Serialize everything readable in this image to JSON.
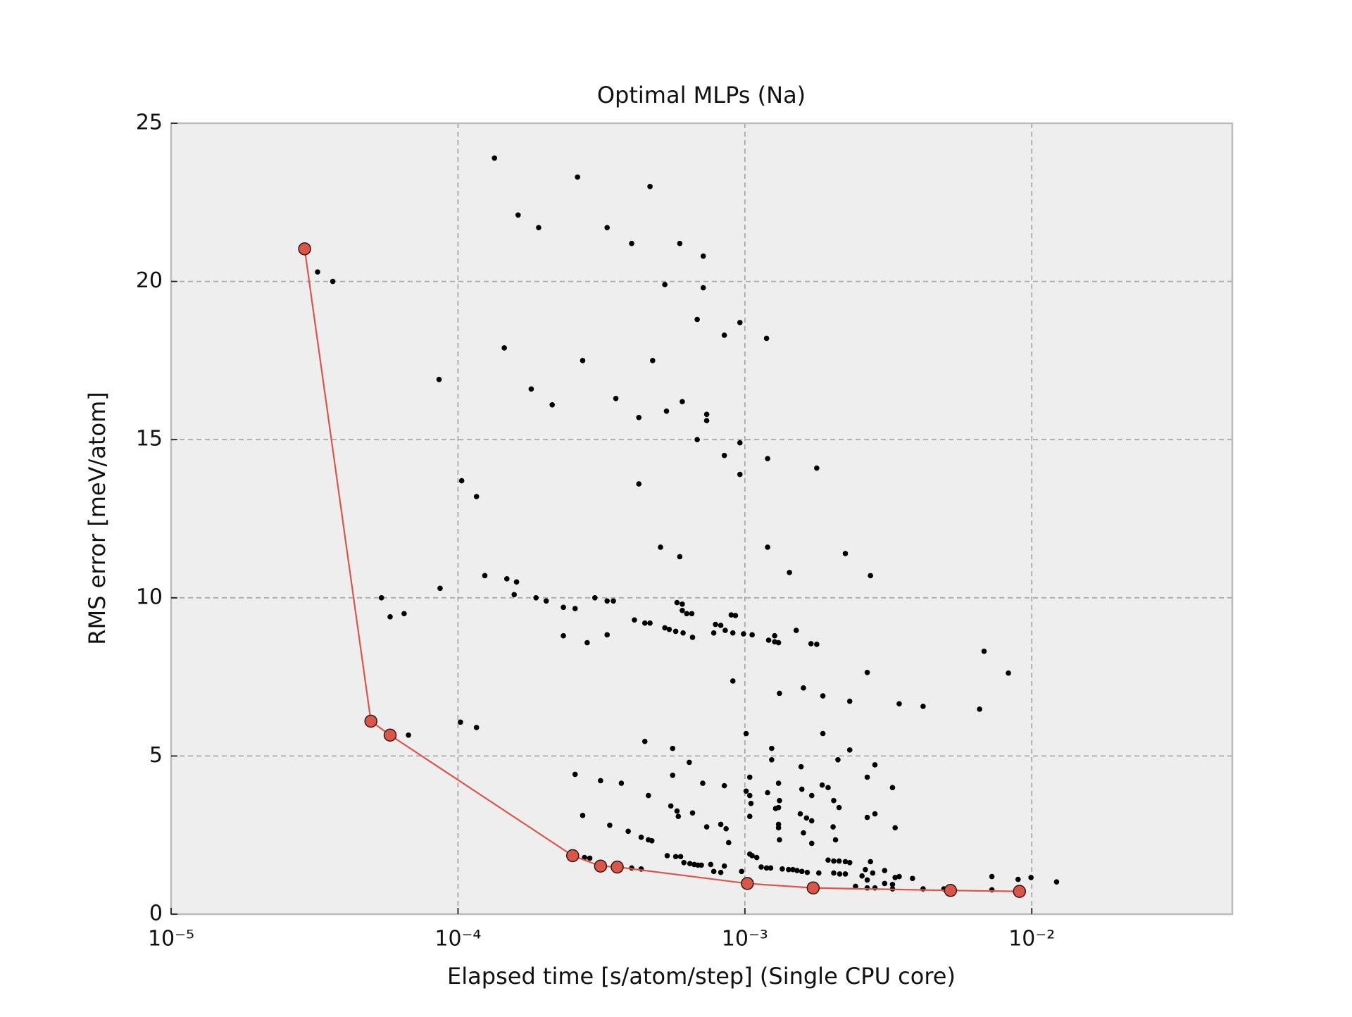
{
  "chart_data": {
    "type": "scatter",
    "title": "Optimal MLPs (Na)",
    "xlabel": "Elapsed time [s/atom/step] (Single CPU core)",
    "ylabel": "RMS error [meV/atom]",
    "xscale": "log",
    "xlim": [
      1e-05,
      0.05
    ],
    "ylim": [
      0,
      25
    ],
    "xticks": [
      {
        "value": 1e-05,
        "label": "10⁻⁵"
      },
      {
        "value": 0.0001,
        "label": "10⁻⁴"
      },
      {
        "value": 0.001,
        "label": "10⁻³"
      },
      {
        "value": 0.01,
        "label": "10⁻²"
      }
    ],
    "yticks": [
      0,
      5,
      10,
      15,
      20,
      25
    ],
    "grid": true,
    "series": [
      {
        "type": "scatter",
        "color": "#000000",
        "x": [
          0.000134,
          0.000261,
          0.000467,
          0.000162,
          0.000191,
          0.000331,
          0.000403,
          0.000593,
          0.000716,
          3.24e-05,
          3.66e-05,
          0.000526,
          0.000716,
          0.000682,
          0.000961,
          0.000848,
          0.00119,
          0.000145,
          0.000272,
          0.000477,
          8.59e-05,
          0.00018,
          0.000355,
          0.000605,
          0.000213,
          0.000533,
          0.000736,
          0.000427,
          0.000736,
          0.000682,
          0.000961,
          0.000848,
          0.0012,
          0.00178,
          0.000961,
          0.000103,
          0.000427,
          0.000116,
          0.000508,
          0.0012,
          0.000593,
          0.00224,
          0.00143,
          0.000124,
          0.00274,
          0.000148,
          0.00016,
          8.66e-05,
          0.000157,
          5.41e-05,
          0.000187,
          0.000203,
          0.0003,
          0.000331,
          0.000348,
          0.00058,
          0.000605,
          0.000233,
          0.000256,
          0.000605,
          0.000627,
          0.000653,
          0.000896,
          0.000927,
          6.49e-05,
          5.8e-05,
          0.000412,
          0.000448,
          0.000467,
          0.00079,
          0.000824,
          0.000526,
          0.000545,
          0.00151,
          0.000574,
          0.000609,
          0.000779,
          0.000854,
          0.000908,
          0.000989,
          0.00106,
          0.000331,
          0.000233,
          0.00127,
          0.000657,
          0.00121,
          0.00127,
          0.00131,
          0.000282,
          0.0017,
          0.00178,
          0.00682,
          0.00829,
          0.00267,
          0.000908,
          0.0016,
          0.00132,
          0.00187,
          0.00232,
          0.00345,
          0.00418,
          0.00658,
          0.000102,
          0.000116,
          6.72e-05,
          0.00187,
          0.00101,
          0.000448,
          0.00056,
          0.00124,
          0.00232,
          0.00124,
          0.00211,
          0.00064,
          0.00284,
          0.00157,
          0.000256,
          0.00056,
          0.00267,
          0.00104,
          0.000314,
          0.000371,
          0.00186,
          0.000713,
          0.000848,
          0.00131,
          0.00195,
          0.00327,
          0.00158,
          0.00101,
          0.0012,
          0.000461,
          0.00104,
          0.00171,
          0.00105,
          0.00204,
          0.00132,
          0.000552,
          0.00131,
          0.00213,
          0.00058,
          0.00128,
          0.000657,
          0.000272,
          0.000586,
          0.00104,
          0.00156,
          0.00284,
          0.00267,
          0.00164,
          0.00171,
          0.00131,
          0.000338,
          0.000824,
          0.000736,
          0.00203,
          0.00334,
          0.00131,
          0.00086,
          0.000392,
          0.0016,
          0.000435,
          0.00207,
          0.000461,
          0.00132,
          0.000474,
          0.000878,
          0.00171,
          0.000536,
          0.000574,
          0.000597,
          0.00104,
          0.00106,
          0.0011,
          0.000276,
          0.000288,
          0.00195,
          0.00204,
          0.00213,
          0.00224,
          0.00232,
          0.00274,
          0.000613,
          0.000643,
          0.000666,
          0.000686,
          0.000705,
          0.00076,
          0.000848,
          0.00114,
          0.00119,
          0.00123,
          0.00135,
          0.00142,
          0.00147,
          0.00152,
          0.00158,
          0.00165,
          0.00181,
          0.000779,
          0.000824,
          0.000403,
          0.000435,
          0.000974,
          0.00263,
          0.00307,
          0.00279,
          0.00204,
          0.00214,
          0.00224,
          0.00256,
          0.00384,
          0.00334,
          0.00345,
          0.00726,
          0.00896,
          0.00994,
          0.0122,
          0.00267,
          0.00307,
          0.00327,
          0.00327,
          0.00418,
          0.00267,
          0.00284,
          0.00243,
          0.00494,
          0.00726
        ],
        "values": [
          23.9,
          23.3,
          23.0,
          22.1,
          21.7,
          21.7,
          21.2,
          21.2,
          20.8,
          20.3,
          20.0,
          19.9,
          19.8,
          18.8,
          18.7,
          18.3,
          18.2,
          17.9,
          17.5,
          17.5,
          16.9,
          16.6,
          16.3,
          16.2,
          16.1,
          15.9,
          15.8,
          15.7,
          15.6,
          15.0,
          14.9,
          14.5,
          14.4,
          14.1,
          13.9,
          13.7,
          13.6,
          13.2,
          11.6,
          11.6,
          11.3,
          11.4,
          10.8,
          10.7,
          10.7,
          10.6,
          10.5,
          10.3,
          10.1,
          10.0,
          10.0,
          9.9,
          10.0,
          9.9,
          9.9,
          9.85,
          9.8,
          9.7,
          9.66,
          9.6,
          9.5,
          9.5,
          9.46,
          9.44,
          9.5,
          9.4,
          9.3,
          9.2,
          9.2,
          9.16,
          9.13,
          9.05,
          9.0,
          8.97,
          8.94,
          8.89,
          8.89,
          8.97,
          8.89,
          8.86,
          8.83,
          8.83,
          8.8,
          8.8,
          8.75,
          8.66,
          8.61,
          8.58,
          8.58,
          8.55,
          8.53,
          8.31,
          7.62,
          7.64,
          7.37,
          7.15,
          6.98,
          6.9,
          6.73,
          6.65,
          6.57,
          6.48,
          6.07,
          5.9,
          5.66,
          5.71,
          5.71,
          5.46,
          5.24,
          5.24,
          5.19,
          4.88,
          4.88,
          4.8,
          4.72,
          4.66,
          4.42,
          4.39,
          4.33,
          4.33,
          4.22,
          4.14,
          4.08,
          4.14,
          4.06,
          4.14,
          4.0,
          4.0,
          3.95,
          3.89,
          3.84,
          3.75,
          3.75,
          3.75,
          3.5,
          3.59,
          3.59,
          3.42,
          3.37,
          3.37,
          3.26,
          3.34,
          3.2,
          3.12,
          3.09,
          3.09,
          3.17,
          3.17,
          3.06,
          3.04,
          2.95,
          2.84,
          2.81,
          2.84,
          2.76,
          2.76,
          2.73,
          2.73,
          2.7,
          2.62,
          2.57,
          2.43,
          2.35,
          2.35,
          2.35,
          2.32,
          2.26,
          2.24,
          1.85,
          1.82,
          1.82,
          1.9,
          1.85,
          1.79,
          1.79,
          1.77,
          1.71,
          1.68,
          1.68,
          1.66,
          1.63,
          1.66,
          1.63,
          1.6,
          1.57,
          1.55,
          1.55,
          1.57,
          1.52,
          1.49,
          1.46,
          1.46,
          1.43,
          1.41,
          1.41,
          1.38,
          1.35,
          1.32,
          1.3,
          1.35,
          1.32,
          1.46,
          1.43,
          1.35,
          1.41,
          1.38,
          1.3,
          1.3,
          1.27,
          1.27,
          1.21,
          1.13,
          1.16,
          1.19,
          1.19,
          1.1,
          1.16,
          1.02,
          1.08,
          0.97,
          0.94,
          0.8,
          0.8,
          0.83,
          0.83,
          0.88,
          0.8,
          0.77
        ]
      },
      {
        "type": "line",
        "color": "#d9574a",
        "x": [
          2.92e-05,
          4.97e-05,
          5.8e-05,
          0.000251,
          0.000314,
          0.000359,
          0.00102,
          0.00173,
          0.00521,
          0.00906
        ],
        "values": [
          21.03,
          6.1,
          5.66,
          1.85,
          1.52,
          1.49,
          0.97,
          0.83,
          0.75,
          0.72
        ]
      }
    ]
  }
}
